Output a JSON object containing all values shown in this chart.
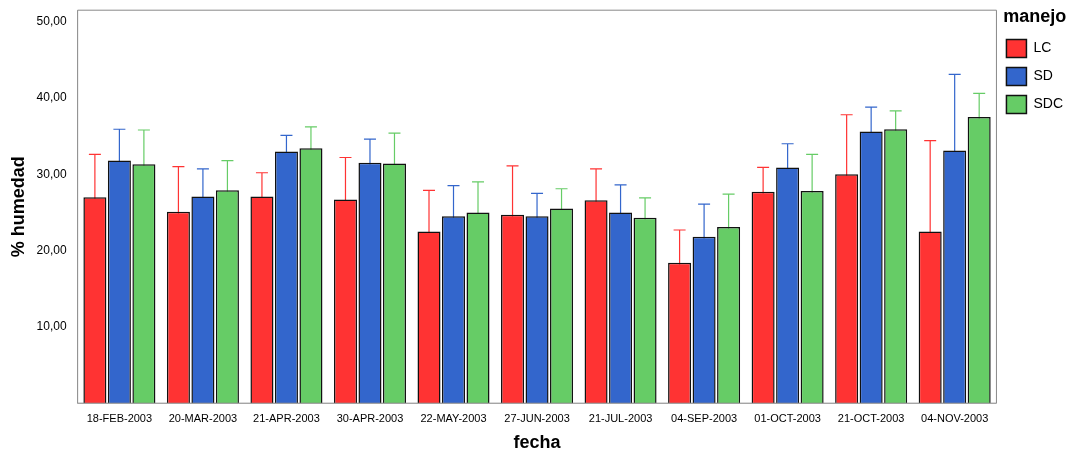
{
  "chart_data": {
    "type": "bar",
    "xlabel": "fecha",
    "ylabel": "% humedad",
    "legend_title": "manejo",
    "legend": "top right",
    "grid": false,
    "categories": [
      "18-FEB-2003",
      "20-MAR-2003",
      "21-APR-2003",
      "30-APR-2003",
      "22-MAY-2003",
      "27-JUN-2003",
      "21-JUL-2003",
      "04-SEP-2003",
      "01-OCT-2003",
      "21-OCT-2003",
      "04-NOV-2003"
    ],
    "ylim": [
      0,
      51.5
    ],
    "yticks": [
      {
        "value": 10,
        "label": "10,00"
      },
      {
        "value": 20,
        "label": "20,00"
      },
      {
        "value": 30,
        "label": "30,00"
      },
      {
        "value": 40,
        "label": "40,00"
      },
      {
        "value": 50,
        "label": "50,00"
      }
    ],
    "series": [
      {
        "name": "LC",
        "color": "#ff3333",
        "values": [
          27.0,
          25.1,
          27.1,
          26.7,
          22.5,
          24.7,
          26.6,
          18.4,
          27.7,
          30.0,
          22.5
        ],
        "errors": [
          5.6,
          5.9,
          3.1,
          5.5,
          5.4,
          6.4,
          4.1,
          4.3,
          3.2,
          7.8,
          11.9
        ]
      },
      {
        "name": "SD",
        "color": "#3366cc",
        "values": [
          31.8,
          27.1,
          33.0,
          31.5,
          24.5,
          24.5,
          25.0,
          21.8,
          30.9,
          35.6,
          33.1
        ],
        "errors": [
          4.1,
          3.6,
          2.1,
          3.1,
          4.0,
          3.0,
          3.6,
          4.3,
          3.1,
          3.2,
          10.0
        ]
      },
      {
        "name": "SDC",
        "color": "#66cc66",
        "values": [
          31.3,
          27.9,
          33.4,
          31.4,
          25.0,
          25.5,
          24.3,
          23.1,
          27.8,
          35.9,
          37.5
        ],
        "errors": [
          4.5,
          3.9,
          2.8,
          4.0,
          4.0,
          2.6,
          2.6,
          4.3,
          4.8,
          2.4,
          3.1
        ]
      }
    ]
  }
}
